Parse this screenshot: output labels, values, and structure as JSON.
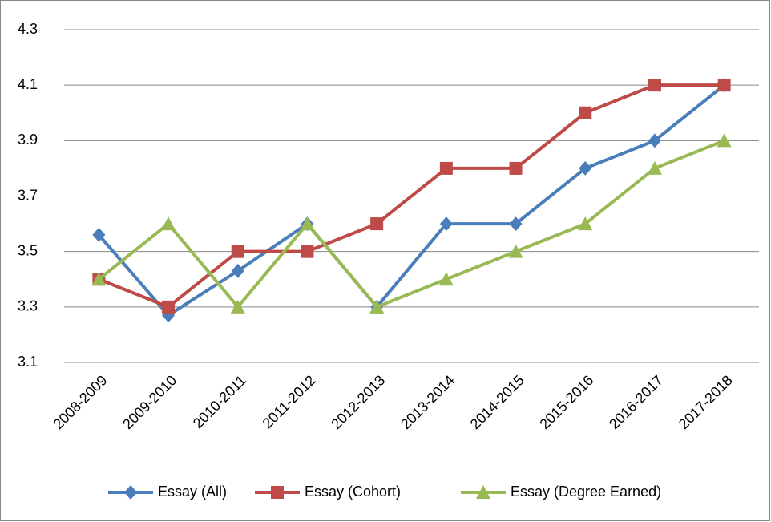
{
  "chart_data": {
    "type": "line",
    "categories": [
      "2008-2009",
      "2009-2010",
      "2010-2011",
      "2011-2012",
      "2012-2013",
      "2013-2014",
      "2014-2015",
      "2015-2016",
      "2016-2017",
      "2017-2018"
    ],
    "series": [
      {
        "name": "Essay (All)",
        "color": "#4a7ebb",
        "marker": "diamond",
        "values": [
          3.56,
          3.27,
          3.43,
          3.6,
          3.3,
          3.6,
          3.6,
          3.8,
          3.9,
          4.1
        ]
      },
      {
        "name": "Essay (Cohort)",
        "color": "#be4b48",
        "marker": "square",
        "values": [
          3.4,
          3.3,
          3.5,
          3.5,
          3.6,
          3.8,
          3.8,
          4.0,
          4.1,
          4.1
        ]
      },
      {
        "name": "Essay (Degree Earned)",
        "color": "#98b954",
        "marker": "triangle",
        "values": [
          3.4,
          3.6,
          3.3,
          3.6,
          3.3,
          3.4,
          3.5,
          3.6,
          3.8,
          3.9
        ]
      }
    ],
    "ylim": [
      3.1,
      4.3
    ],
    "yticks": [
      3.1,
      3.3,
      3.5,
      3.7,
      3.9,
      4.1,
      4.3
    ],
    "grid": true,
    "legend": "bottom"
  }
}
